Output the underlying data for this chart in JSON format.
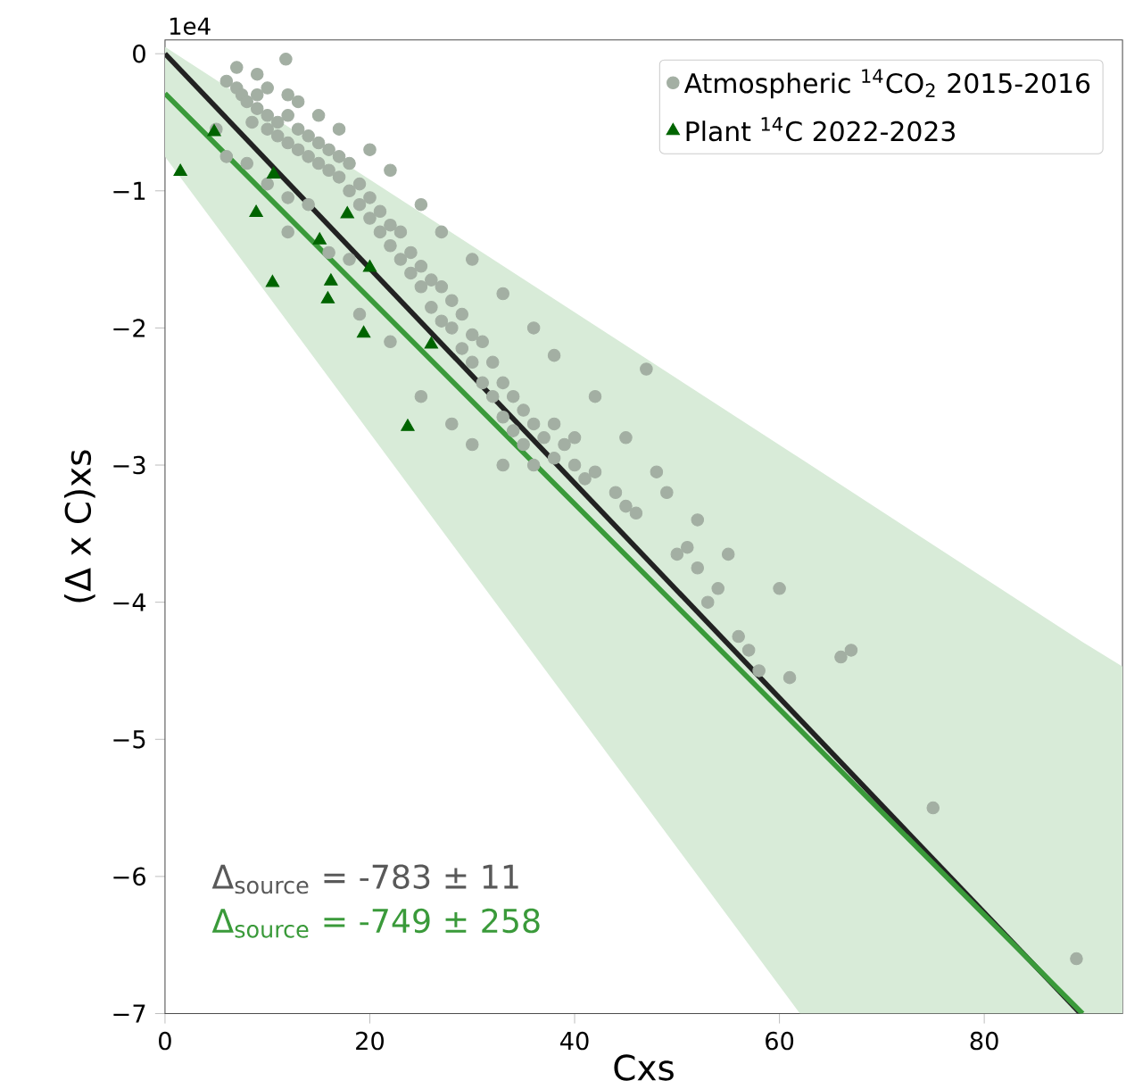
{
  "chart_data": {
    "type": "scatter",
    "xlabel": "Cxs",
    "ylabel": "(Δ x C)xs",
    "xlim": [
      0,
      93.5
    ],
    "ylim": [
      -7,
      0.1
    ],
    "xticks": [
      0,
      20,
      40,
      60,
      80
    ],
    "yticks": [
      0,
      {
        "value": -1,
        "label": "−1"
      },
      {
        "value": -2,
        "label": "−2"
      },
      {
        "value": -3,
        "label": "−3"
      },
      {
        "value": -4,
        "label": "−4"
      },
      {
        "value": -5,
        "label": "−5"
      },
      {
        "value": -6,
        "label": "−6"
      },
      {
        "value": -7,
        "label": "−7"
      }
    ],
    "grid": false,
    "legend": "top right",
    "annotations": [
      "1e4",
      "Δ$_{source}$ = -783 ± 11",
      "Δ$_{source}$ = -749 ± 258"
    ],
    "series": [
      {
        "name": "Atmospheric $^{14}$CO$_{2}$ 2015-2016",
        "marker": "circle",
        "color": "#a3afa3",
        "x": [
          6,
          7,
          7.5,
          8,
          9,
          9,
          10,
          8.5,
          10,
          11,
          11,
          12,
          12,
          13,
          13,
          14,
          14,
          15,
          15,
          16,
          16,
          17,
          17,
          18,
          18,
          19,
          19,
          20,
          20,
          21,
          21,
          22,
          22,
          23,
          23,
          24,
          24,
          25,
          25,
          26,
          26,
          27,
          27,
          28,
          28,
          29,
          29,
          30,
          30,
          31,
          31,
          32,
          32,
          33,
          33,
          34,
          34,
          35,
          35,
          36,
          36,
          37,
          38,
          38,
          39,
          40,
          40,
          41,
          42,
          44,
          45,
          46,
          47,
          49,
          50,
          51,
          52,
          53,
          54,
          56,
          57,
          58,
          60,
          61,
          66,
          67,
          75,
          89,
          5,
          6,
          8,
          10,
          12,
          14,
          12,
          16,
          18,
          19,
          22,
          25,
          28,
          30,
          33,
          7,
          9,
          10,
          12,
          13,
          15,
          17,
          20,
          22,
          25,
          27,
          30,
          33,
          36,
          38,
          42,
          45,
          48,
          52,
          55,
          11.8
        ],
        "values": [
          -0.2,
          -0.25,
          -0.3,
          -0.35,
          -0.3,
          -0.4,
          -0.45,
          -0.5,
          -0.55,
          -0.5,
          -0.6,
          -0.65,
          -0.45,
          -0.55,
          -0.7,
          -0.6,
          -0.75,
          -0.8,
          -0.65,
          -0.7,
          -0.85,
          -0.9,
          -0.75,
          -1.0,
          -0.8,
          -0.95,
          -1.1,
          -1.05,
          -1.2,
          -1.15,
          -1.3,
          -1.25,
          -1.4,
          -1.3,
          -1.5,
          -1.45,
          -1.6,
          -1.55,
          -1.7,
          -1.65,
          -1.85,
          -1.7,
          -1.95,
          -1.8,
          -2.0,
          -1.9,
          -2.15,
          -2.05,
          -2.25,
          -2.1,
          -2.4,
          -2.25,
          -2.5,
          -2.4,
          -2.65,
          -2.5,
          -2.75,
          -2.6,
          -2.85,
          -2.7,
          -3.0,
          -2.8,
          -2.95,
          -2.7,
          -2.85,
          -3.0,
          -2.8,
          -3.1,
          -3.05,
          -3.2,
          -3.3,
          -3.35,
          -2.3,
          -3.2,
          -3.65,
          -3.6,
          -3.75,
          -4.0,
          -3.9,
          -4.25,
          -4.35,
          -4.5,
          -3.9,
          -4.55,
          -4.4,
          -4.35,
          -5.5,
          -6.6,
          -0.55,
          -0.75,
          -0.8,
          -0.95,
          -1.05,
          -1.1,
          -1.3,
          -1.45,
          -1.5,
          -1.9,
          -2.1,
          -2.5,
          -2.7,
          -2.85,
          -3.0,
          -0.1,
          -0.15,
          -0.25,
          -0.3,
          -0.35,
          -0.45,
          -0.55,
          -0.7,
          -0.85,
          -1.1,
          -1.3,
          -1.5,
          -1.75,
          -2.0,
          -2.2,
          -2.5,
          -2.8,
          -3.05,
          -3.4,
          -3.65,
          -0.04
        ]
      },
      {
        "name": "Plant $^{14}$C 2022-2023",
        "marker": "triangle",
        "color": "#006400",
        "x": [
          1.5,
          4.8,
          10.6,
          8.9,
          17.8,
          15.1,
          10.5,
          20,
          16.2,
          15.9,
          19.4,
          26,
          23.7
        ],
        "values": [
          -0.86,
          -0.57,
          -0.88,
          -1.16,
          -1.17,
          -1.36,
          -1.67,
          -1.56,
          -1.66,
          -1.79,
          -2.04,
          -2.12,
          -2.72
        ]
      },
      {
        "type": "line",
        "marker": "none",
        "color": "#222222",
        "x": [
          0,
          89.4
        ],
        "values": [
          0,
          -7
        ]
      },
      {
        "type": "line",
        "marker": "none",
        "color": "#3a9a3a",
        "x": [
          0,
          62,
          89.6,
          93.5
        ],
        "values": [
          -0.29,
          -4.93,
          -7,
          null
        ],
        "lower": [
          -0.75,
          -7,
          -7,
          -7
        ],
        "upper": [
          0.05,
          -2.95,
          -4.29,
          -4.47
        ]
      }
    ]
  }
}
